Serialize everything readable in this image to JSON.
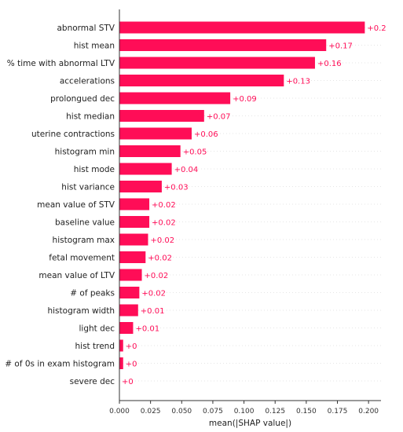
{
  "chart_data": {
    "type": "bar",
    "orientation": "horizontal",
    "categories": [
      "abnormal STV",
      "hist mean",
      "% time with abnormal LTV",
      "accelerations",
      "prolongued dec",
      "hist median",
      "uterine contractions",
      "histogram min",
      "hist mode",
      "hist variance",
      "mean value of STV",
      "baseline value",
      "histogram max",
      "fetal movement",
      "mean value of LTV",
      "# of peaks",
      "histogram width",
      "light dec",
      "hist trend",
      "# of 0s in exam histogram",
      "severe dec"
    ],
    "values": [
      0.197,
      0.166,
      0.157,
      0.132,
      0.089,
      0.068,
      0.058,
      0.049,
      0.042,
      0.034,
      0.024,
      0.024,
      0.023,
      0.021,
      0.018,
      0.016,
      0.015,
      0.011,
      0.003,
      0.003,
      0.0
    ],
    "value_labels": [
      "+0.2",
      "+0.17",
      "+0.16",
      "+0.13",
      "+0.09",
      "+0.07",
      "+0.06",
      "+0.05",
      "+0.04",
      "+0.03",
      "+0.02",
      "+0.02",
      "+0.02",
      "+0.02",
      "+0.02",
      "+0.02",
      "+0.01",
      "+0.01",
      "+0",
      "+0",
      "+0"
    ],
    "xlabel": "mean(|SHAP value|)",
    "ylabel": "",
    "xlim": [
      0.0,
      0.21
    ],
    "xticks": [
      0.0,
      0.025,
      0.05,
      0.075,
      0.1,
      0.125,
      0.15,
      0.175,
      0.2
    ],
    "xtick_labels": [
      "0.000",
      "0.025",
      "0.050",
      "0.075",
      "0.100",
      "0.125",
      "0.150",
      "0.175",
      "0.200"
    ],
    "grid": false,
    "colors": {
      "bar": "#ff0d57",
      "value_label": "#ff0d57",
      "row_separator": "#cccccc",
      "axis": "#333333"
    }
  }
}
